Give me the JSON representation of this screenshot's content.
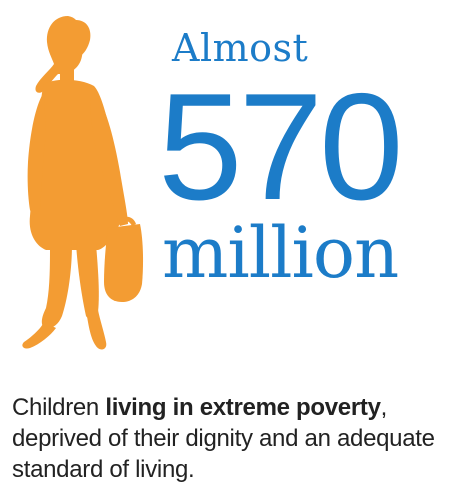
{
  "colors": {
    "accent_blue": "#1c7cc8",
    "silhouette_orange": "#f39c33",
    "text_dark": "#222222"
  },
  "icons": {
    "silhouette": "child-carrying-bucket-silhouette-icon"
  },
  "headline": {
    "prefix": "Almost",
    "number": "570",
    "unit": "million"
  },
  "caption": {
    "lead": "Children ",
    "emphasis": "living in extreme poverty",
    "rest": ", deprived of their dignity and an adequate standard of living."
  }
}
